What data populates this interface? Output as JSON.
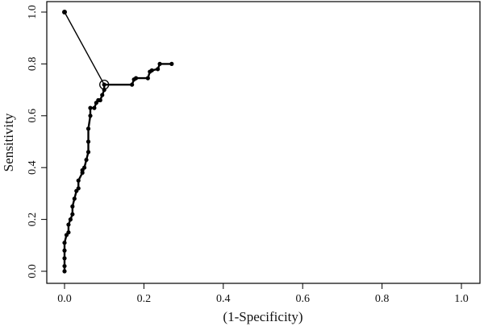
{
  "chart_data": {
    "type": "line",
    "title": "",
    "xlabel": "(1-Specificity)",
    "ylabel": "Sensitivity",
    "xlim": [
      0,
      1
    ],
    "ylim": [
      0,
      1
    ],
    "xticks": [
      "0.0",
      "0.2",
      "0.4",
      "0.6",
      "0.8",
      "1.0"
    ],
    "yticks": [
      "0.0",
      "0.2",
      "0.4",
      "0.6",
      "0.8",
      "1.0"
    ],
    "grid": false,
    "legend": "none",
    "roc_curve": {
      "x": [
        0,
        0,
        0,
        0,
        0,
        0.005,
        0.01,
        0.01,
        0.015,
        0.02,
        0.02,
        0.025,
        0.03,
        0.035,
        0.035,
        0.045,
        0.045,
        0.05,
        0.055,
        0.06,
        0.06,
        0.06,
        0.065,
        0.065,
        0.075,
        0.08,
        0.085,
        0.09,
        0.095,
        0.1,
        0.1,
        0.17,
        0.175,
        0.18,
        0.21,
        0.215,
        0.22,
        0.235,
        0.24,
        0.27
      ],
      "y": [
        0,
        0.02,
        0.05,
        0.08,
        0.11,
        0.14,
        0.15,
        0.18,
        0.2,
        0.22,
        0.25,
        0.28,
        0.31,
        0.32,
        0.35,
        0.38,
        0.39,
        0.4,
        0.43,
        0.46,
        0.5,
        0.55,
        0.6,
        0.63,
        0.63,
        0.65,
        0.66,
        0.66,
        0.68,
        0.7,
        0.72,
        0.72,
        0.74,
        0.745,
        0.745,
        0.77,
        0.775,
        0.78,
        0.8,
        0.8
      ]
    },
    "cutoff_line": {
      "x": [
        0,
        0.1
      ],
      "y": [
        1.0,
        0.72
      ]
    },
    "optimal_point": {
      "x": 0.1,
      "y": 0.72
    }
  }
}
